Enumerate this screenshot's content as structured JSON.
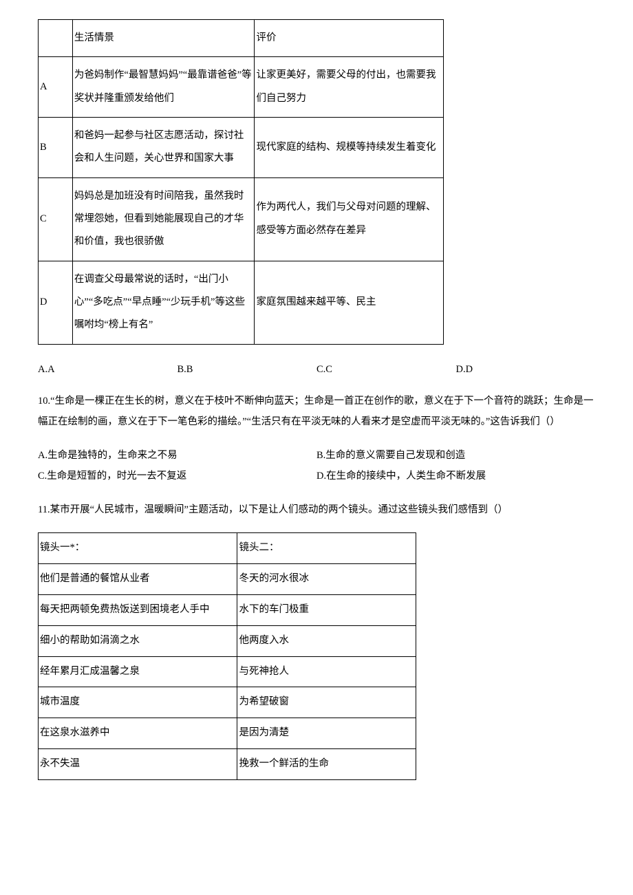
{
  "table1": {
    "header": {
      "col1": "",
      "col2": "生活情景",
      "col3": "评价"
    },
    "rows": [
      {
        "key": "A",
        "scene": "为爸妈制作“最智慧妈妈”“最靠谱爸爸”等奖状并隆重颁发给他们",
        "eval": "让家更美好，需要父母的付出，也需要我们自己努力"
      },
      {
        "key": "B",
        "scene": "和爸妈一起参与社区志愿活动，探讨社会和人生问题，关心世界和国家大事",
        "eval": "现代家庭的结构、规模等持续发生着变化"
      },
      {
        "key": "C",
        "scene": "妈妈总是加班没有时间陪我，虽然我时常埋怨她，但看到她能展现自己的才华和价值，我也很骄傲",
        "eval": "作为两代人，我们与父母对问题的理解、感受等方面必然存在差异"
      },
      {
        "key": "D",
        "scene": "在调查父母最常说的话时，“出门小心”“多吃点”“早点睡”“少玩手机”等这些嘱咐均“榜上有名”",
        "eval": "家庭氛围越来越平等、民主"
      }
    ]
  },
  "opts9": {
    "a": "A.A",
    "b": "B.B",
    "c": "C.C",
    "d": "D.D"
  },
  "q10": {
    "stem": "10.“生命是一棵正在生长的树，意义在于枝叶不断伸向蓝天；生命是一首正在创作的歌，意义在于下一个音符的跳跃；生命是一幅正在绘制的画，意义在于下一笔色彩的描绘。”“生活只有在平淡无味的人看来才是空虚而平淡无味的。”这告诉我们（）",
    "a": "A.生命是独特的，生命来之不易",
    "b": "B.生命的意义需要自己发现和创造",
    "c": "C.生命是短暂的，时光一去不复返",
    "d": "D.在生命的接续中，人类生命不断发展"
  },
  "q11": {
    "stem": "11.某市开展“人民城市，温暖瞬间”主题活动，以下是让人们感动的两个镜头。通过这些镜头我们感悟到（）"
  },
  "table2": {
    "left": [
      "镜头一*：",
      "他们是普通的餐馆从业者",
      "每天把两顿免费热饭送到困境老人手中",
      "细小的帮助如涓滴之水",
      "经年累月汇成温馨之泉",
      "城市温度",
      "在这泉水滋养中",
      "永不失温"
    ],
    "right": [
      "镜头二：",
      "冬天的河水很冰",
      "水下的车门极重",
      "他两度入水",
      "与死神抢人",
      "为希望破窗",
      "是因为清楚",
      "挽救一个鲜活的生命"
    ]
  }
}
